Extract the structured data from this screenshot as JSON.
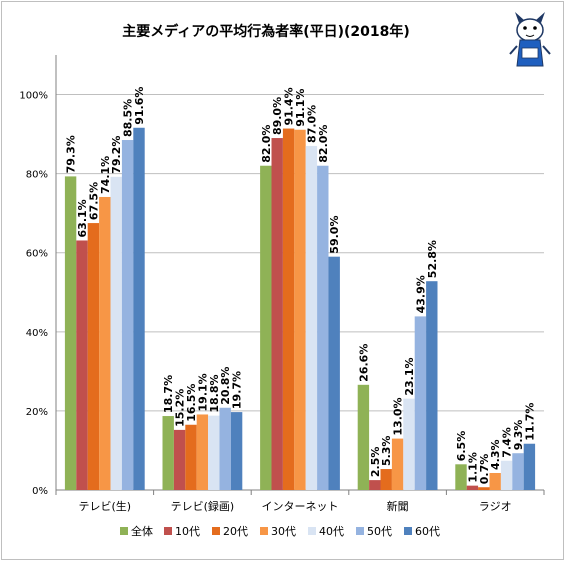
{
  "chart_data": {
    "type": "bar",
    "title": "主要メディアの平均行為者率(平日)(2018年)",
    "xlabel": "",
    "ylabel": "",
    "ylim": [
      0,
      110
    ],
    "yticks": [
      0,
      20,
      40,
      60,
      80,
      100
    ],
    "ytick_labels": [
      "0%",
      "20%",
      "40%",
      "60%",
      "80%",
      "100%"
    ],
    "grid": true,
    "legend_position": "bottom",
    "categories": [
      "テレビ(生)",
      "テレビ(録画)",
      "インターネット",
      "新聞",
      "ラジオ"
    ],
    "series": [
      {
        "name": "全体",
        "color": "#8fb256",
        "values": [
          79.3,
          18.7,
          82.0,
          26.6,
          6.5
        ],
        "labels": [
          "79.3%",
          "18.7%",
          "82.0%",
          "26.6%",
          "6.5%"
        ]
      },
      {
        "name": "10代",
        "color": "#c0504d",
        "values": [
          63.1,
          15.2,
          89.0,
          2.5,
          1.1
        ],
        "labels": [
          "63.1%",
          "15.2%",
          "89.0%",
          "2.5%",
          "1.1%"
        ]
      },
      {
        "name": "20代",
        "color": "#e46c1d",
        "values": [
          67.5,
          16.5,
          91.4,
          5.3,
          0.7
        ],
        "labels": [
          "67.5%",
          "16.5%",
          "91.4%",
          "5.3%",
          "0.7%"
        ]
      },
      {
        "name": "30代",
        "color": "#f79646",
        "values": [
          74.1,
          19.1,
          91.1,
          13.0,
          4.3
        ],
        "labels": [
          "74.1%",
          "19.1%",
          "91.1%",
          "13.0%",
          "4.3%"
        ]
      },
      {
        "name": "40代",
        "color": "#d9e4f3",
        "values": [
          79.2,
          18.8,
          87.0,
          23.1,
          7.4
        ],
        "labels": [
          "79.2%",
          "18.8%",
          "87.0%",
          "23.1%",
          "7.4%"
        ]
      },
      {
        "name": "50代",
        "color": "#95b3e0",
        "values": [
          88.5,
          20.8,
          82.0,
          43.9,
          9.3
        ],
        "labels": [
          "88.5%",
          "20.8%",
          "82.0%",
          "43.9%",
          "9.3%"
        ]
      },
      {
        "name": "60代",
        "color": "#4f81bd",
        "values": [
          91.6,
          19.7,
          59.0,
          52.8,
          11.7
        ],
        "labels": [
          "91.6%",
          "19.7%",
          "59.0%",
          "52.8%",
          "11.7%"
        ]
      }
    ]
  },
  "mascot": {
    "icon": "cartoon-mascot-icon"
  }
}
